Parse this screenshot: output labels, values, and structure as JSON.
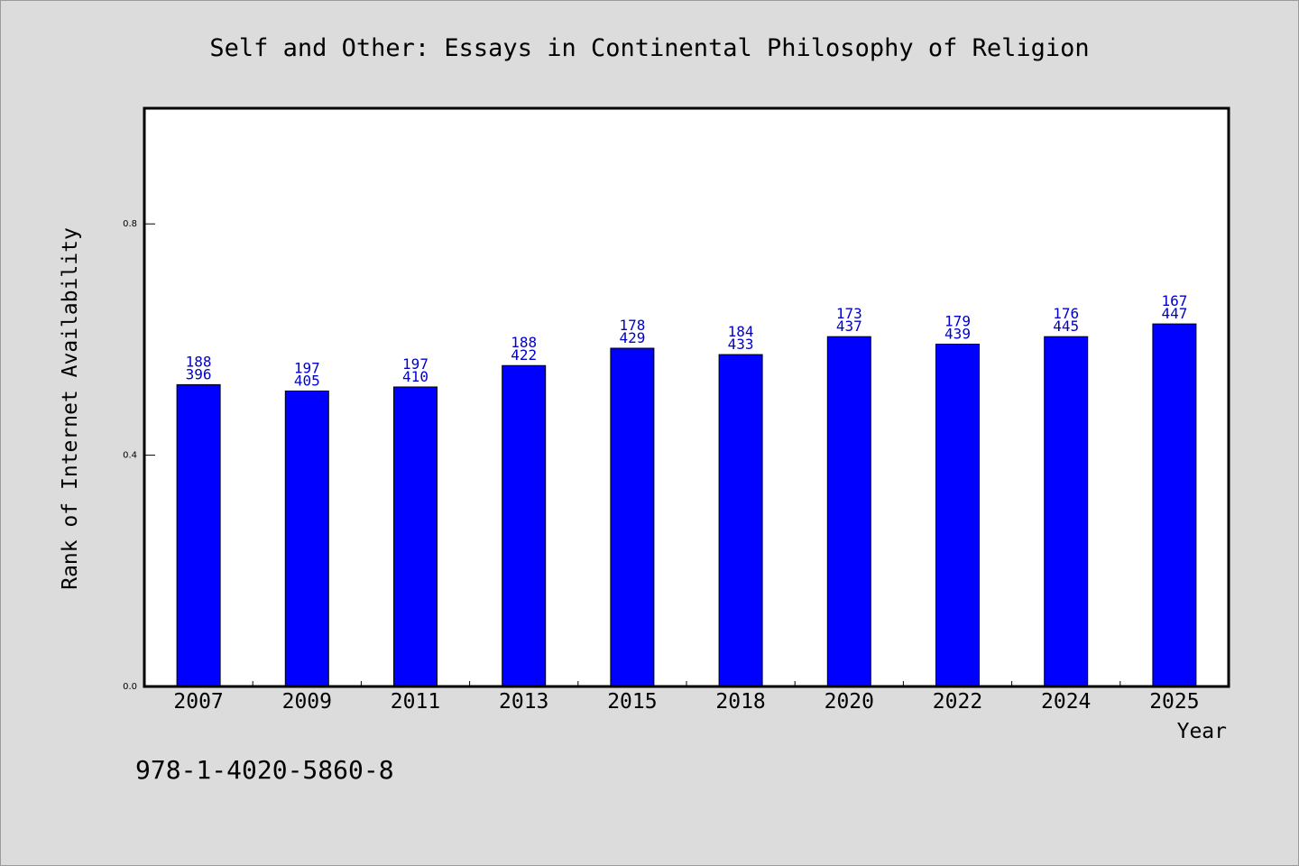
{
  "chart_data": {
    "type": "bar",
    "title": "Self and Other: Essays in Continental Philosophy of Religion",
    "xlabel": "Year",
    "ylabel": "Rank of Internet Availability",
    "categories": [
      "2007",
      "2009",
      "2011",
      "2013",
      "2015",
      "2018",
      "2020",
      "2022",
      "2024",
      "2025"
    ],
    "values": [
      0.522,
      0.511,
      0.518,
      0.555,
      0.585,
      0.574,
      0.605,
      0.592,
      0.605,
      0.627
    ],
    "labels_top": [
      "188",
      "197",
      "197",
      "188",
      "178",
      "184",
      "173",
      "179",
      "176",
      "167"
    ],
    "labels_bottom": [
      "396",
      "405",
      "410",
      "422",
      "429",
      "433",
      "437",
      "439",
      "445",
      "447"
    ],
    "ylim": [
      0,
      1.0
    ],
    "yticks": [
      0.0,
      0.4,
      0.8
    ],
    "ytick_labels": [
      "0.0",
      "0.4",
      "0.8"
    ],
    "grid": false,
    "bar_color": "#0000ff",
    "label_color": "#0000cc",
    "background_color": "#dcdcdc",
    "plot_background": "#ffffff"
  },
  "footer": {
    "isbn": "978-1-4020-5860-8"
  }
}
